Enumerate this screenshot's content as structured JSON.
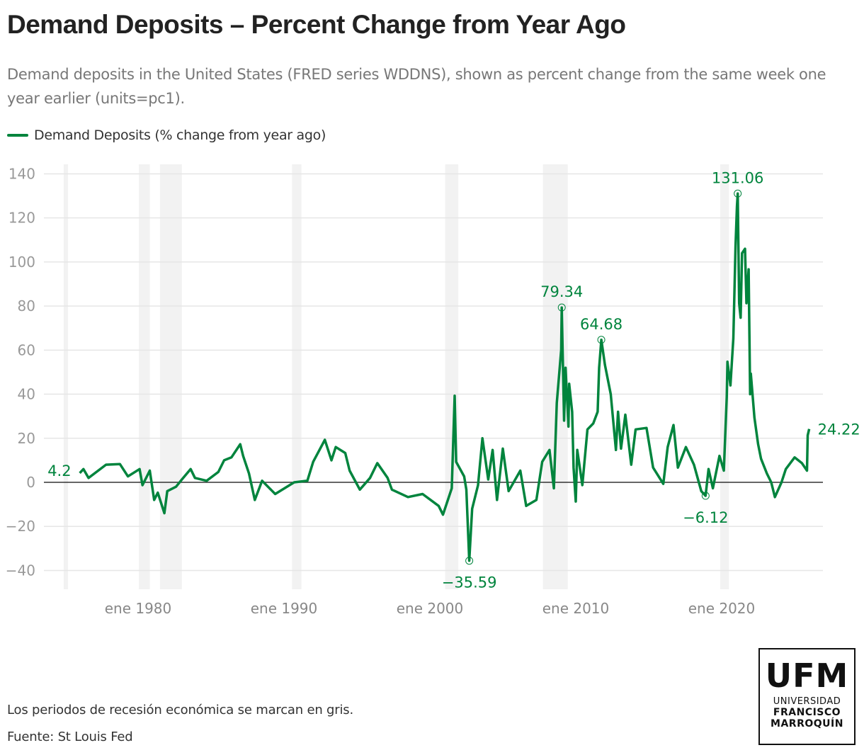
{
  "header": {
    "title": "Demand Deposits – Percent Change from Year Ago",
    "subtitle": "Demand deposits in the United States (FRED series WDDNS), shown as percent change from the same week one year earlier (units=pc1)."
  },
  "footer": {
    "note": "Los periodos de recesión económica se marcan en gris.",
    "source": "Fuente: St Louis Fed"
  },
  "logo": {
    "big": "UFM",
    "line1": "UNIVERSIDAD",
    "line2": "FRANCISCO",
    "line3": "MARROQUÍN"
  },
  "colors": {
    "series": "#00843d",
    "recession": "#f2f2f2",
    "grid": "#e6e6e6",
    "axis": "#333333",
    "tick": "#999999"
  },
  "chart_data": {
    "type": "line",
    "title": "Demand Deposits – Percent Change from Year Ago",
    "xlabel": "",
    "ylabel": "",
    "ylim": [
      -40,
      140
    ],
    "xlim": [
      1973.5,
      2027
    ],
    "yticks": [
      -40,
      -20,
      0,
      20,
      40,
      60,
      80,
      100,
      120,
      140
    ],
    "ytick_labels": [
      "−40",
      "−20",
      "0",
      "20",
      "40",
      "60",
      "80",
      "100",
      "120",
      "140"
    ],
    "xticks": [
      1980,
      1990,
      2000,
      2010,
      2020
    ],
    "xtick_labels": [
      "ene 1980",
      "ene 1990",
      "ene 2000",
      "ene 2010",
      "ene 2020"
    ],
    "grid": true,
    "legend": {
      "position": "top-left",
      "label": "Demand Deposits (% change from year ago)"
    },
    "recessions": [
      [
        1974.9,
        1975.2
      ],
      [
        1980.05,
        1980.8
      ],
      [
        1981.5,
        1983.0
      ],
      [
        1990.55,
        1991.2
      ],
      [
        2001.05,
        2001.95
      ],
      [
        2007.75,
        2009.45
      ],
      [
        2019.9,
        2020.5
      ]
    ],
    "series": [
      {
        "name": "Demand Deposits (% change from year ago)",
        "x": [
          1976.0,
          1976.25,
          1976.6,
          1977.8,
          1978.75,
          1979.3,
          1980.1,
          1980.3,
          1980.8,
          1981.1,
          1981.35,
          1981.8,
          1982.0,
          1982.6,
          1983.0,
          1983.6,
          1983.9,
          1984.7,
          1985.5,
          1985.9,
          1986.4,
          1987.0,
          1987.2,
          1987.6,
          1988.0,
          1988.5,
          1989.4,
          1990.7,
          1991.6,
          1992.0,
          1992.8,
          1993.25,
          1993.55,
          1994.2,
          1994.5,
          1995.2,
          1995.9,
          1996.4,
          1997.1,
          1997.4,
          1998.5,
          1999.5,
          2000.6,
          2000.9,
          2001.5,
          2001.7,
          2001.8,
          2002.35,
          2002.5,
          2002.7,
          2002.9,
          2003.3,
          2003.6,
          2004.0,
          2004.3,
          2004.6,
          2005.0,
          2005.4,
          2006.2,
          2006.6,
          2007.3,
          2007.7,
          2008.2,
          2008.5,
          2008.7,
          2009.0,
          2009.04,
          2009.2,
          2009.3,
          2009.5,
          2009.55,
          2009.75,
          2009.85,
          2010.0,
          2010.1,
          2010.45,
          2010.8,
          2011.2,
          2011.5,
          2011.6,
          2011.75,
          2012.0,
          2012.4,
          2012.75,
          2012.9,
          2013.1,
          2013.4,
          2013.8,
          2014.1,
          2014.85,
          2015.3,
          2016.0,
          2016.3,
          2016.7,
          2017.0,
          2017.55,
          2018.1,
          2018.6,
          2018.9,
          2019.1,
          2019.4,
          2019.85,
          2020.15,
          2020.35,
          2020.4,
          2020.6,
          2020.8,
          2020.95,
          2021.05,
          2021.1,
          2021.2,
          2021.3,
          2021.4,
          2021.6,
          2021.7,
          2021.85,
          2021.95,
          2022.0,
          2022.25,
          2022.5,
          2022.7,
          2023.1,
          2023.4,
          2023.65,
          2024.1,
          2024.4,
          2025.0,
          2025.5,
          2025.85,
          2025.9,
          2026.0
        ],
        "y": [
          4.2,
          6,
          2,
          8,
          8.3,
          2.7,
          6,
          -1.3,
          5.3,
          -8,
          -4.7,
          -14,
          -4,
          -2,
          1.3,
          6,
          2,
          0.7,
          4.7,
          10,
          11.3,
          17.3,
          12,
          4,
          -8,
          0.7,
          -5.3,
          0,
          0.7,
          9.3,
          19.3,
          10,
          16,
          13.3,
          5.3,
          -3.3,
          2,
          8.7,
          2,
          -3.3,
          -6.7,
          -5.3,
          -10.7,
          -14.7,
          -2.7,
          39.3,
          9.3,
          2.7,
          -3.3,
          -35.59,
          -12,
          -1.3,
          20,
          1.3,
          14.7,
          -8,
          15.3,
          -4,
          5.3,
          -10.7,
          -8,
          9.3,
          14.7,
          -2.7,
          36,
          60,
          79.34,
          28,
          52,
          25.3,
          44.7,
          32,
          6.7,
          -8.7,
          14.7,
          -1.3,
          24,
          26.7,
          32,
          52,
          64.68,
          53.3,
          40,
          14.7,
          32,
          15.3,
          30.7,
          8,
          24,
          24.7,
          6.7,
          -0.7,
          16,
          26,
          6.7,
          16,
          8,
          -4,
          -6.12,
          6,
          -2.7,
          12,
          5.3,
          38.7,
          54.7,
          44,
          65.3,
          107.3,
          125.3,
          131.06,
          81.3,
          74.7,
          104,
          106,
          81.3,
          96.7,
          40,
          49.3,
          29.3,
          17.3,
          10.7,
          4,
          0,
          -6.7,
          0,
          6,
          11.3,
          8.7,
          5.3,
          21.3,
          24.22
        ]
      }
    ],
    "annotations": [
      {
        "x": 1976.0,
        "y": 4.2,
        "label": "4.2",
        "side": "left",
        "marker": false
      },
      {
        "x": 2002.7,
        "y": -35.59,
        "label": "−35.59",
        "side": "below",
        "marker": true
      },
      {
        "x": 2009.04,
        "y": 79.34,
        "label": "79.34",
        "side": "above",
        "marker": true
      },
      {
        "x": 2011.75,
        "y": 64.68,
        "label": "64.68",
        "side": "above",
        "marker": true
      },
      {
        "x": 2018.9,
        "y": -6.12,
        "label": "−6.12",
        "side": "below",
        "marker": true
      },
      {
        "x": 2021.1,
        "y": 131.06,
        "label": "131.06",
        "side": "above",
        "marker": true
      },
      {
        "x": 2026.0,
        "y": 24.22,
        "label": "24.22",
        "side": "right",
        "marker": false
      }
    ]
  }
}
